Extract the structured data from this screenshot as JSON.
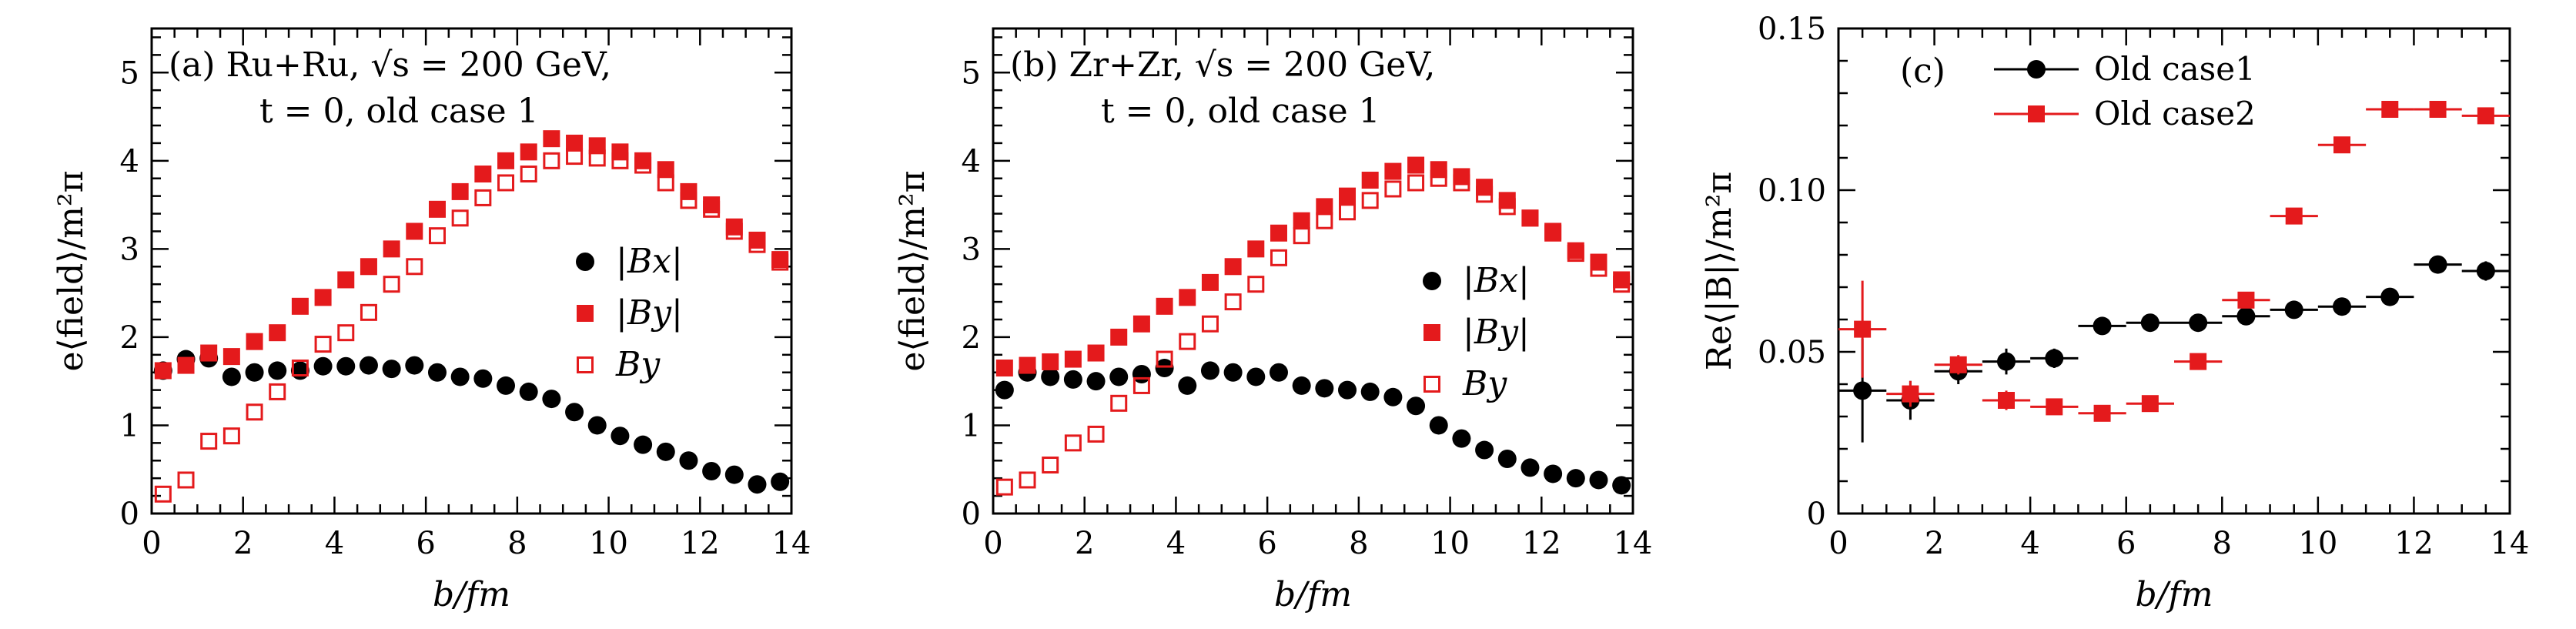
{
  "chart_data": [
    {
      "type": "scatter",
      "panel": "(a)",
      "title_line1": "(a) Ru+Ru, √s = 200 GeV,",
      "title_line2": "t = 0, old case 1",
      "xlabel": "b/fm",
      "ylabel": "e⟨field⟩/m²π",
      "xlim": [
        0,
        14
      ],
      "ylim": [
        0,
        5.5
      ],
      "xticks": [
        "0",
        "2",
        "4",
        "6",
        "8",
        "10",
        "12",
        "14"
      ],
      "yticks": [
        "0",
        "1",
        "2",
        "3",
        "4",
        "5"
      ],
      "legend_position": "right-middle",
      "x": [
        0.25,
        0.75,
        1.25,
        1.75,
        2.25,
        2.75,
        3.25,
        3.75,
        4.25,
        4.75,
        5.25,
        5.75,
        6.25,
        6.75,
        7.25,
        7.75,
        8.25,
        8.75,
        9.25,
        9.75,
        10.25,
        10.75,
        11.25,
        11.75,
        12.25,
        12.75,
        13.25,
        13.75
      ],
      "series": [
        {
          "name": "|Bx|",
          "marker": "filled-circle",
          "color": "#000000",
          "values": [
            1.62,
            1.75,
            1.76,
            1.55,
            1.6,
            1.62,
            1.62,
            1.67,
            1.67,
            1.68,
            1.64,
            1.68,
            1.6,
            1.55,
            1.53,
            1.45,
            1.38,
            1.3,
            1.15,
            1.0,
            0.88,
            0.78,
            0.7,
            0.6,
            0.48,
            0.44,
            0.33,
            0.36
          ]
        },
        {
          "name": "|By|",
          "marker": "filled-square",
          "color": "#e41a1c",
          "values": [
            1.62,
            1.68,
            1.82,
            1.78,
            1.95,
            2.05,
            2.35,
            2.45,
            2.65,
            2.8,
            3.0,
            3.2,
            3.45,
            3.65,
            3.85,
            4.0,
            4.1,
            4.25,
            4.2,
            4.17,
            4.1,
            4.0,
            3.9,
            3.65,
            3.5,
            3.25,
            3.1,
            2.88
          ]
        },
        {
          "name": "By",
          "marker": "open-square",
          "color": "#e41a1c",
          "values": [
            0.22,
            0.38,
            0.82,
            0.88,
            1.15,
            1.38,
            1.65,
            1.92,
            2.05,
            2.28,
            2.6,
            2.8,
            3.15,
            3.35,
            3.58,
            3.75,
            3.85,
            4.0,
            4.05,
            4.03,
            4.0,
            3.95,
            3.75,
            3.55,
            3.45,
            3.2,
            3.05,
            2.85
          ]
        }
      ]
    },
    {
      "type": "scatter",
      "panel": "(b)",
      "title_line1": "(b) Zr+Zr, √s = 200 GeV,",
      "title_line2": "t = 0, old case 1",
      "xlabel": "b/fm",
      "ylabel": "e⟨field⟩/m²π",
      "xlim": [
        0,
        14
      ],
      "ylim": [
        0,
        5.5
      ],
      "xticks": [
        "0",
        "2",
        "4",
        "6",
        "8",
        "10",
        "12",
        "14"
      ],
      "yticks": [
        "0",
        "1",
        "2",
        "3",
        "4",
        "5"
      ],
      "legend_position": "right-middle",
      "x": [
        0.25,
        0.75,
        1.25,
        1.75,
        2.25,
        2.75,
        3.25,
        3.75,
        4.25,
        4.75,
        5.25,
        5.75,
        6.25,
        6.75,
        7.25,
        7.75,
        8.25,
        8.75,
        9.25,
        9.75,
        10.25,
        10.75,
        11.25,
        11.75,
        12.25,
        12.75,
        13.25,
        13.75
      ],
      "series": [
        {
          "name": "|Bx|",
          "marker": "filled-circle",
          "color": "#000000",
          "values": [
            1.4,
            1.6,
            1.55,
            1.52,
            1.5,
            1.55,
            1.58,
            1.65,
            1.45,
            1.62,
            1.6,
            1.55,
            1.6,
            1.45,
            1.42,
            1.4,
            1.38,
            1.32,
            1.22,
            1.0,
            0.85,
            0.72,
            0.62,
            0.52,
            0.45,
            0.4,
            0.38,
            0.32
          ]
        },
        {
          "name": "|By|",
          "marker": "filled-square",
          "color": "#e41a1c",
          "values": [
            1.65,
            1.68,
            1.72,
            1.75,
            1.82,
            2.0,
            2.15,
            2.35,
            2.45,
            2.62,
            2.8,
            3.0,
            3.18,
            3.32,
            3.48,
            3.6,
            3.78,
            3.88,
            3.95,
            3.9,
            3.82,
            3.7,
            3.55,
            3.35,
            3.2,
            2.98,
            2.85,
            2.65
          ]
        },
        {
          "name": "By",
          "marker": "open-square",
          "color": "#e41a1c",
          "values": [
            0.3,
            0.38,
            0.55,
            0.8,
            0.9,
            1.25,
            1.45,
            1.75,
            1.95,
            2.15,
            2.4,
            2.6,
            2.9,
            3.15,
            3.32,
            3.42,
            3.55,
            3.68,
            3.75,
            3.8,
            3.75,
            3.62,
            3.48,
            3.35,
            3.18,
            2.95,
            2.78,
            2.6
          ]
        }
      ]
    },
    {
      "type": "scatter",
      "panel": "(c)",
      "title_line1": "(c)",
      "xlabel": "b/fm",
      "ylabel": "Re⟨|B|⟩/m²π",
      "xlim": [
        0,
        14
      ],
      "ylim": [
        0,
        0.15
      ],
      "xticks": [
        "0",
        "2",
        "4",
        "6",
        "8",
        "10",
        "12",
        "14"
      ],
      "yticks": [
        "0",
        "0.05",
        "0.10",
        "0.15"
      ],
      "legend_position": "top-left",
      "series": [
        {
          "name": "Old case1",
          "marker": "filled-circle",
          "color": "#000000",
          "x": [
            0.5,
            1.5,
            2.5,
            3.5,
            4.5,
            5.5,
            6.5,
            7.5,
            8.5,
            9.5,
            10.5,
            11.5,
            12.5,
            13.5
          ],
          "values": [
            0.038,
            0.035,
            0.044,
            0.047,
            0.048,
            0.058,
            0.059,
            0.059,
            0.061,
            0.063,
            0.064,
            0.067,
            0.077,
            0.075
          ],
          "yerr": [
            0.016,
            0.006,
            0.004,
            0.004,
            0.003,
            0.002,
            0.002,
            0.001,
            0.001,
            0.001,
            0.001,
            0.001,
            0.001,
            0.003
          ]
        },
        {
          "name": "Old case2",
          "marker": "filled-square",
          "color": "#e41a1c",
          "x": [
            0.5,
            1.5,
            2.5,
            3.5,
            4.5,
            5.5,
            6.5,
            7.5,
            8.5,
            9.5,
            10.5,
            11.5,
            12.5,
            13.5
          ],
          "values": [
            0.057,
            0.037,
            0.046,
            0.035,
            0.033,
            0.031,
            0.034,
            0.047,
            0.066,
            0.092,
            0.114,
            0.125,
            0.125,
            0.123
          ],
          "yerr": [
            0.015,
            0.004,
            0.003,
            0.003,
            0.002,
            0.002,
            0.001,
            0.001,
            0.001,
            0.001,
            0.001,
            0.001,
            0.001,
            0.002
          ]
        }
      ]
    }
  ]
}
